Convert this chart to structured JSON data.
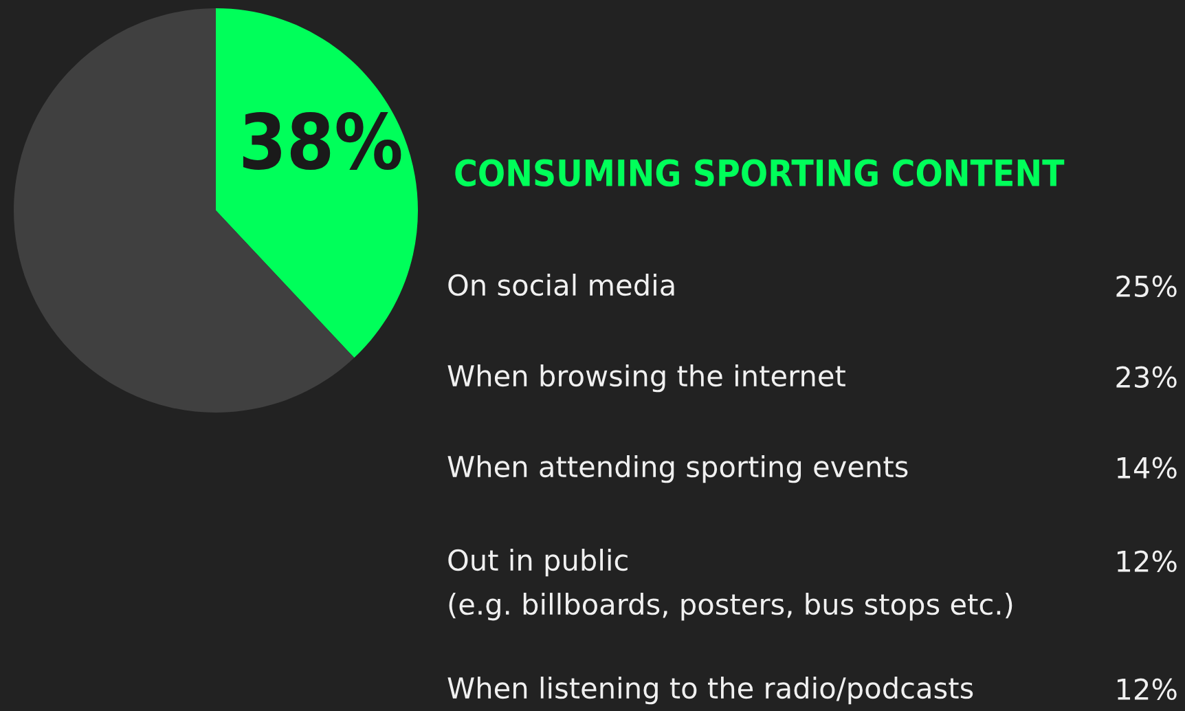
{
  "chart_data": [
    {
      "type": "pie",
      "categories": [
        null,
        null
      ],
      "values": [
        38,
        62
      ],
      "colors": [
        "#00ff5a",
        "#404040"
      ],
      "value_labels": [
        "38%",
        null
      ]
    },
    {
      "type": "other",
      "title": "CONSUMING SPORTING CONTENT",
      "categories": [
        "On social media",
        "When browsing the internet",
        "When attending sporting events",
        "Out in public\n(e.g. billboards, posters, bus stops etc.)",
        "When listening to the radio/podcasts"
      ],
      "values": [
        25,
        23,
        14,
        12,
        12
      ],
      "value_labels": [
        "25%",
        "23%",
        "14%",
        "12%",
        "12%"
      ]
    }
  ]
}
